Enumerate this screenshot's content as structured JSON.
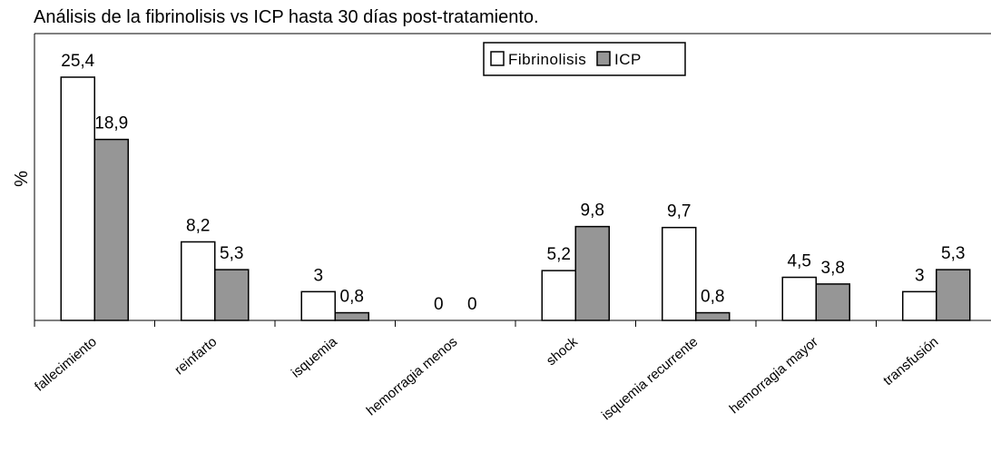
{
  "chart_data": {
    "type": "bar",
    "title": "Análisis de la fibrinolisis vs ICP hasta 30 días post-tratamiento.",
    "xlabel": "",
    "ylabel": "%",
    "ylim": [
      0,
      30
    ],
    "grid": false,
    "legend_position": "top-center",
    "categories": [
      "fallecimiento",
      "reinfarto",
      "isquemia",
      "hemorragia menos",
      "shock",
      "isquemia recurrente",
      "hemorragia mayor",
      "transfusión"
    ],
    "series": [
      {
        "name": "Fibrinolisis",
        "color": "#ffffff",
        "values": [
          25.4,
          8.2,
          3,
          0,
          5.2,
          9.7,
          4.5,
          3
        ],
        "labels": [
          "25,4",
          "8,2",
          "3",
          "0",
          "5,2",
          "9,7",
          "4,5",
          "3"
        ]
      },
      {
        "name": "ICP",
        "color": "#969696",
        "values": [
          18.9,
          5.3,
          0.8,
          0,
          9.8,
          0.8,
          3.8,
          5.3
        ],
        "labels": [
          "18,9",
          "5,3",
          "0,8",
          "0",
          "9,8",
          "0,8",
          "3,8",
          "5,3"
        ]
      }
    ]
  }
}
